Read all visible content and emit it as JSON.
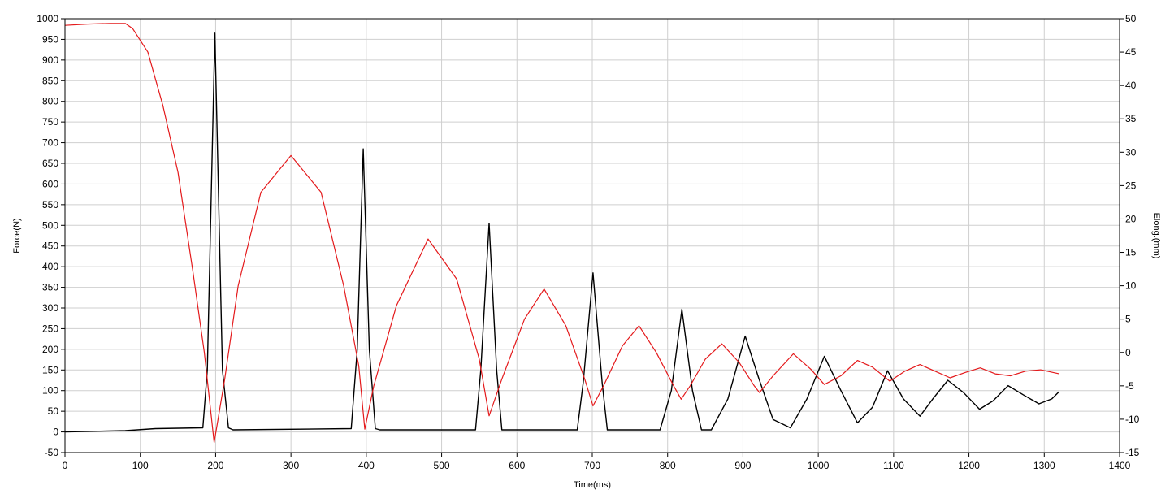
{
  "chart_data": {
    "type": "line",
    "xlabel": "Time(ms)",
    "ylabel_left": "Force(N)",
    "ylabel_right": "Elong.(mm)",
    "xlim": [
      0,
      1400
    ],
    "ylim_left": [
      -50,
      1000
    ],
    "ylim_right": [
      -15,
      50
    ],
    "x_ticks": [
      0,
      100,
      200,
      300,
      400,
      500,
      600,
      700,
      800,
      900,
      1000,
      1100,
      1200,
      1300,
      1400
    ],
    "y_left_ticks": [
      -50,
      0,
      50,
      100,
      150,
      200,
      250,
      300,
      350,
      400,
      450,
      500,
      550,
      600,
      650,
      700,
      750,
      800,
      850,
      900,
      950,
      1000
    ],
    "y_right_ticks": [
      -15,
      -10,
      -5,
      0,
      5,
      10,
      15,
      20,
      25,
      30,
      35,
      40,
      45,
      50
    ],
    "grid": true,
    "legend": "none",
    "series": [
      {
        "axis": "left",
        "color": "#000000",
        "x": [
          0,
          80,
          120,
          183,
          189,
          199,
          209,
          217,
          223,
          380,
          388,
          396,
          404,
          412,
          418,
          545,
          552,
          563,
          573,
          580,
          680,
          688,
          701,
          713,
          720,
          790,
          805,
          819,
          833,
          845,
          858,
          880,
          903,
          921,
          940,
          963,
          985,
          1008,
          1030,
          1052,
          1072,
          1092,
          1113,
          1135,
          1152,
          1172,
          1193,
          1214,
          1232,
          1252,
          1272,
          1293,
          1310,
          1320
        ],
        "y": [
          0,
          3,
          8,
          10,
          150,
          965,
          150,
          10,
          5,
          8,
          200,
          685,
          200,
          8,
          5,
          5,
          150,
          505,
          150,
          5,
          5,
          120,
          385,
          120,
          5,
          5,
          100,
          297,
          100,
          5,
          5,
          80,
          232,
          130,
          30,
          10,
          80,
          183,
          100,
          22,
          60,
          148,
          80,
          38,
          80,
          125,
          95,
          55,
          75,
          112,
          90,
          68,
          80,
          98
        ]
      },
      {
        "axis": "right",
        "color": "#e41a1c",
        "x": [
          0,
          30,
          60,
          80,
          90,
          110,
          130,
          150,
          170,
          185,
          198,
          212,
          230,
          260,
          300,
          340,
          370,
          390,
          398,
          410,
          440,
          482,
          520,
          550,
          563,
          580,
          610,
          636,
          665,
          690,
          701,
          715,
          740,
          762,
          785,
          808,
          818,
          830,
          850,
          872,
          895,
          915,
          922,
          940,
          967,
          990,
          1008,
          1030,
          1052,
          1072,
          1095,
          1115,
          1135,
          1155,
          1175,
          1195,
          1215,
          1235,
          1255,
          1275,
          1295,
          1320
        ],
        "y": [
          49,
          49.2,
          49.3,
          49.3,
          48.5,
          45,
          37,
          27,
          12,
          0,
          -13.5,
          -4,
          10,
          24,
          29.5,
          24,
          10,
          -2,
          -11.5,
          -5,
          7,
          17,
          11,
          -1,
          -9.5,
          -4,
          5,
          9.5,
          4,
          -4,
          -8,
          -5,
          1,
          4,
          0,
          -5,
          -7,
          -5,
          -1,
          1.3,
          -1.5,
          -5,
          -6,
          -3.5,
          -0.2,
          -2.5,
          -4.8,
          -3.5,
          -1.2,
          -2.2,
          -4.3,
          -2.8,
          -1.8,
          -2.8,
          -3.8,
          -3,
          -2.3,
          -3.2,
          -3.5,
          -2.8,
          -2.6,
          -3.2
        ]
      }
    ]
  }
}
